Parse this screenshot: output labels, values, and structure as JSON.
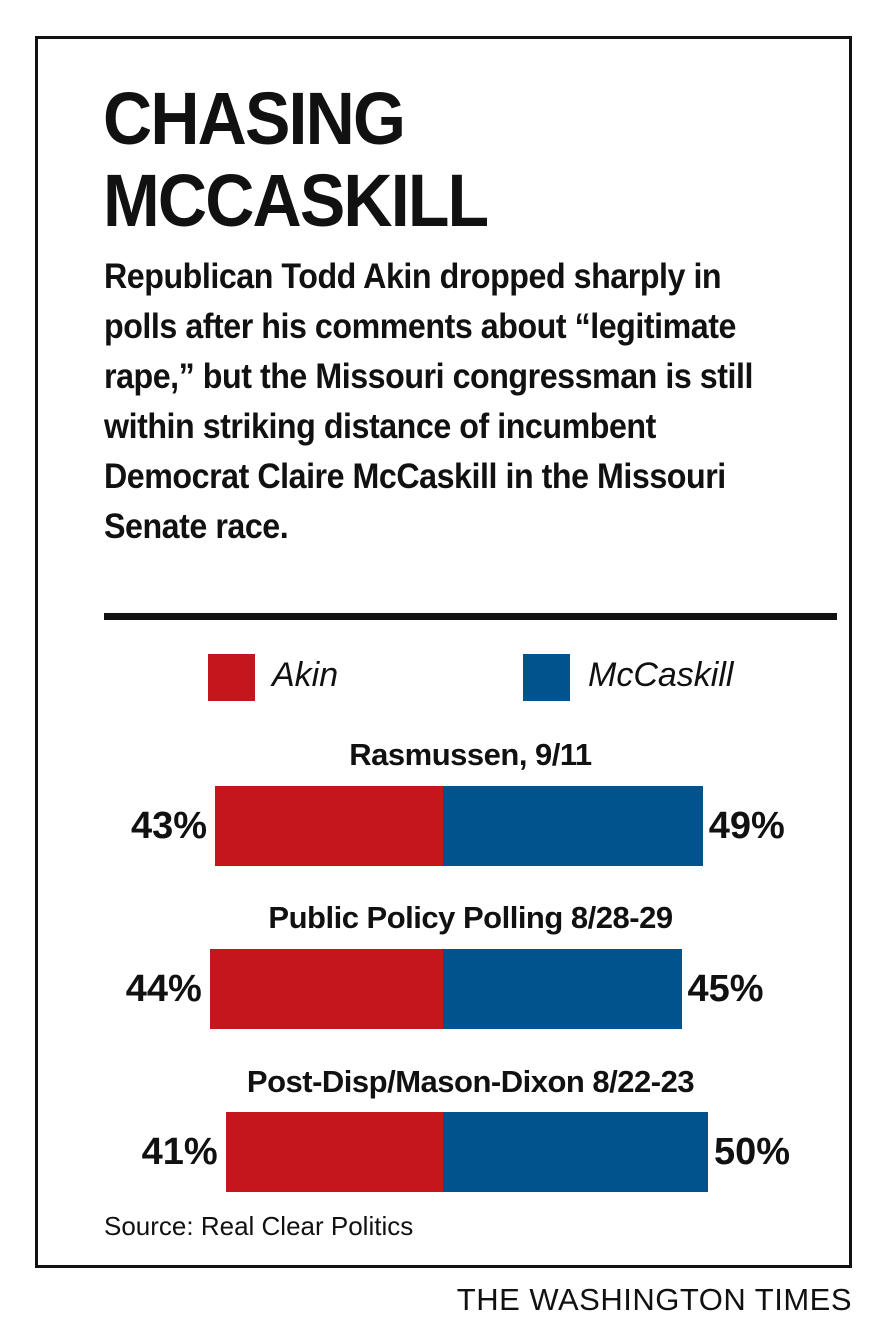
{
  "headline_line1": "CHASING",
  "headline_line2": "MCCASKILL",
  "subhead": "Republican Todd Akin dropped sharply in polls after his comments about “legitimate rape,” but the Missouri congressman is still within striking distance of incumbent Democrat Claire McCaskill in the Missouri Senate race.",
  "source": "Source: Real Clear Politics",
  "credit": "THE WASHINGTON TIMES",
  "colors": {
    "akin": "#c4161c",
    "mccaskill": "#00538c",
    "ink": "#111111"
  },
  "chart_data": {
    "type": "bar",
    "stacked": true,
    "orientation": "horizontal",
    "categories": [
      "Rasmussen, 9/11",
      "Public Policy Polling 8/28-29",
      "Post-Disp/Mason-Dixon 8/22-23"
    ],
    "series": [
      {
        "name": "Akin",
        "values": [
          43,
          44,
          41
        ],
        "labels": [
          "43%",
          "44%",
          "41%"
        ],
        "color": "#c4161c"
      },
      {
        "name": "McCaskill",
        "values": [
          49,
          45,
          50
        ],
        "labels": [
          "49%",
          "45%",
          "50%"
        ],
        "color": "#00538c"
      }
    ],
    "legend": "top",
    "grid": false
  }
}
